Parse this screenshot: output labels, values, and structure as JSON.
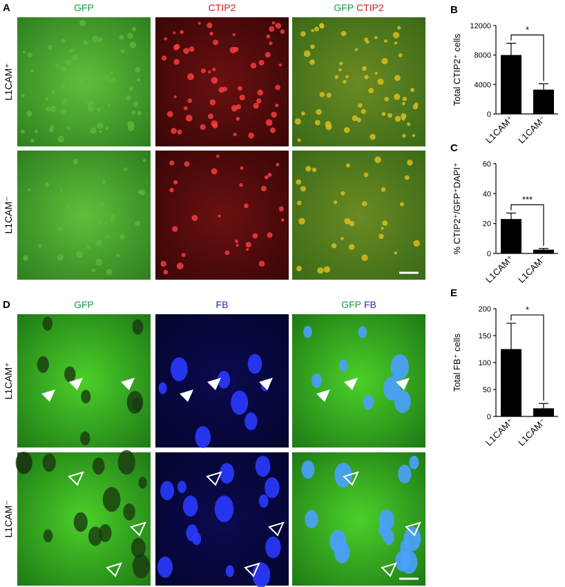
{
  "panels": [
    {
      "label": "A",
      "columns": [
        [
          {
            "text": "GFP",
            "color": "#1a9a3a"
          }
        ],
        [
          {
            "text": "CTIP2",
            "color": "#d41a1a"
          }
        ],
        [
          {
            "text": "GFP",
            "color": "#1a9a3a"
          },
          {
            "text": "CTIP2",
            "color": "#d41a1a"
          }
        ]
      ],
      "rows": [
        "L1CAM⁺",
        "L1CAM⁻"
      ]
    },
    {
      "label": "D",
      "columns": [
        [
          {
            "text": "GFP",
            "color": "#1a9a3a"
          }
        ],
        [
          {
            "text": "FB",
            "color": "#2a2aa8"
          }
        ],
        [
          {
            "text": "GFP",
            "color": "#1a9a3a"
          },
          {
            "text": "FB",
            "color": "#2a2aa8"
          }
        ]
      ],
      "rows": [
        "L1CAM⁺",
        "L1CAM⁻"
      ]
    }
  ],
  "chart_data": [
    {
      "type": "bar",
      "panel": "B",
      "y_label": "Total CTIP2⁺ cells",
      "categories": [
        "L1CAM⁺",
        "L1CAM⁻"
      ],
      "values": [
        8000,
        3300
      ],
      "errors": [
        1600,
        800
      ],
      "color": "#000000",
      "annotation": "*",
      "ylim": [
        0,
        12000
      ],
      "yticks": [
        0,
        4000,
        8000,
        12000
      ]
    },
    {
      "type": "bar",
      "panel": "C",
      "y_label": "% CTIP2⁺/GFP⁺DAPI⁺",
      "categories": [
        "L1CAM⁺",
        "L1CAM⁻"
      ],
      "values": [
        23,
        2.5
      ],
      "errors": [
        4,
        0.8
      ],
      "color": "#000000",
      "annotation": "***",
      "ylim": [
        0,
        60
      ],
      "yticks": [
        0,
        20,
        40,
        60
      ]
    },
    {
      "type": "bar",
      "panel": "E",
      "y_label": "Total FB⁺ cells",
      "categories": [
        "L1CAM⁺",
        "L1CAM⁻"
      ],
      "values": [
        125,
        15
      ],
      "errors": [
        48,
        9
      ],
      "color": "#000000",
      "annotation": "*",
      "ylim": [
        0,
        200
      ],
      "yticks": [
        0,
        50,
        100,
        150,
        200
      ]
    }
  ]
}
